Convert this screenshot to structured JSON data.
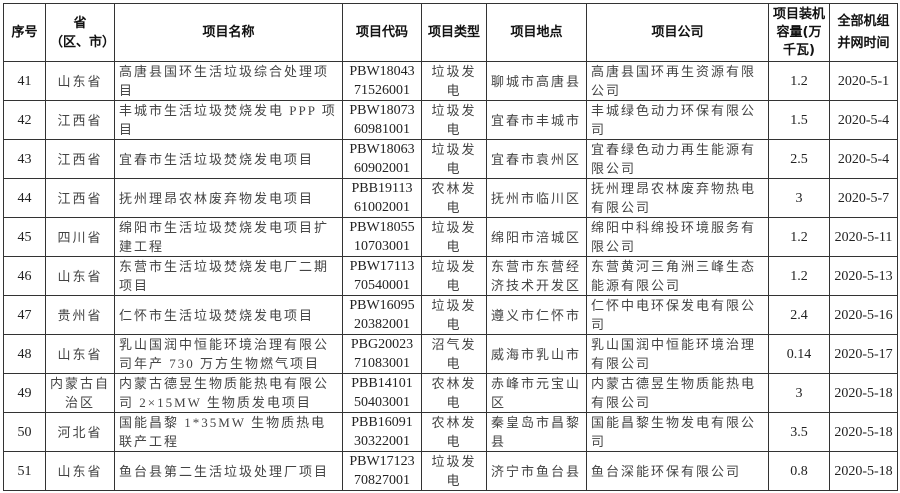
{
  "headers": [
    "序号",
    "省\n（区、市）",
    "项目名称",
    "项目代码",
    "项目类型",
    "项目地点",
    "项目公司",
    "项目装机容量(万千瓦)",
    "全部机组并网时间"
  ],
  "rows": [
    {
      "no": "41",
      "province": "山东省",
      "name": "高唐县国环生活垃圾综合处理项目",
      "code": "PBW1804371526001",
      "type": "垃圾发电",
      "location": "聊城市高唐县",
      "company": "高唐县国环再生资源有限公司",
      "capacity": "1.2",
      "date": "2020-5-1"
    },
    {
      "no": "42",
      "province": "江西省",
      "name": "丰城市生活垃圾焚烧发电 PPP 项目",
      "code": "PBW1807360981001",
      "type": "垃圾发电",
      "location": "宜春市丰城市",
      "company": "丰城绿色动力环保有限公司",
      "capacity": "1.5",
      "date": "2020-5-4"
    },
    {
      "no": "43",
      "province": "江西省",
      "name": "宜春市生活垃圾焚烧发电项目",
      "code": "PBW1806360902001",
      "type": "垃圾发电",
      "location": "宜春市袁州区",
      "company": "宜春绿色动力再生能源有限公司",
      "capacity": "2.5",
      "date": "2020-5-4"
    },
    {
      "no": "44",
      "province": "江西省",
      "name": "抚州理昂农林废弃物发电项目",
      "code": "PBB1911361002001",
      "type": "农林发电",
      "location": "抚州市临川区",
      "company": "抚州理昂农林废弃物热电有限公司",
      "capacity": "3",
      "date": "2020-5-7"
    },
    {
      "no": "45",
      "province": "四川省",
      "name": "绵阳市生活垃圾焚烧发电项目扩建工程",
      "code": "PBW1805510703001",
      "type": "垃圾发电",
      "location": "绵阳市涪城区",
      "company": "绵阳中科绵投环境服务有限公司",
      "capacity": "1.2",
      "date": "2020-5-11"
    },
    {
      "no": "46",
      "province": "山东省",
      "name": "东营市生活垃圾焚烧发电厂二期项目",
      "code": "PBW1711370540001",
      "type": "垃圾发电",
      "location": "东营市东营经济技术开发区",
      "company": "东营黄河三角洲三峰生态能源有限公司",
      "capacity": "1.2",
      "date": "2020-5-13"
    },
    {
      "no": "47",
      "province": "贵州省",
      "name": "仁怀市生活垃圾焚烧发电项目",
      "code": "PBW1609520382001",
      "type": "垃圾发电",
      "location": "遵义市仁怀市",
      "company": "仁怀中电环保发电有限公司",
      "capacity": "2.4",
      "date": "2020-5-16"
    },
    {
      "no": "48",
      "province": "山东省",
      "name": "乳山国润中恒能环境治理有限公司年产 730 万方生物燃气项目",
      "code": "PBG2002371083001",
      "type": "沼气发电",
      "location": "威海市乳山市",
      "company": "乳山国润中恒能环境治理有限公司",
      "capacity": "0.14",
      "date": "2020-5-17"
    },
    {
      "no": "49",
      "province": "内蒙古自治区",
      "name": "内蒙古德昱生物质能热电有限公司 2×15MW 生物质发电项目",
      "code": "PBB1410150403001",
      "type": "农林发电",
      "location": "赤峰市元宝山区",
      "company": "内蒙古德昱生物质能热电有限公司",
      "capacity": "3",
      "date": "2020-5-18"
    },
    {
      "no": "50",
      "province": "河北省",
      "name": "国能昌黎 1*35MW 生物质热电联产工程",
      "code": "PBB1609130322001",
      "type": "农林发电",
      "location": "秦皇岛市昌黎县",
      "company": "国能昌黎生物发电有限公司",
      "capacity": "3.5",
      "date": "2020-5-18"
    },
    {
      "no": "51",
      "province": "山东省",
      "name": "鱼台县第二生活垃圾处理厂项目",
      "code": "PBW1712370827001",
      "type": "垃圾发电",
      "location": "济宁市鱼台县",
      "company": "鱼台深能环保有限公司",
      "capacity": "0.8",
      "date": "2020-5-18"
    }
  ]
}
